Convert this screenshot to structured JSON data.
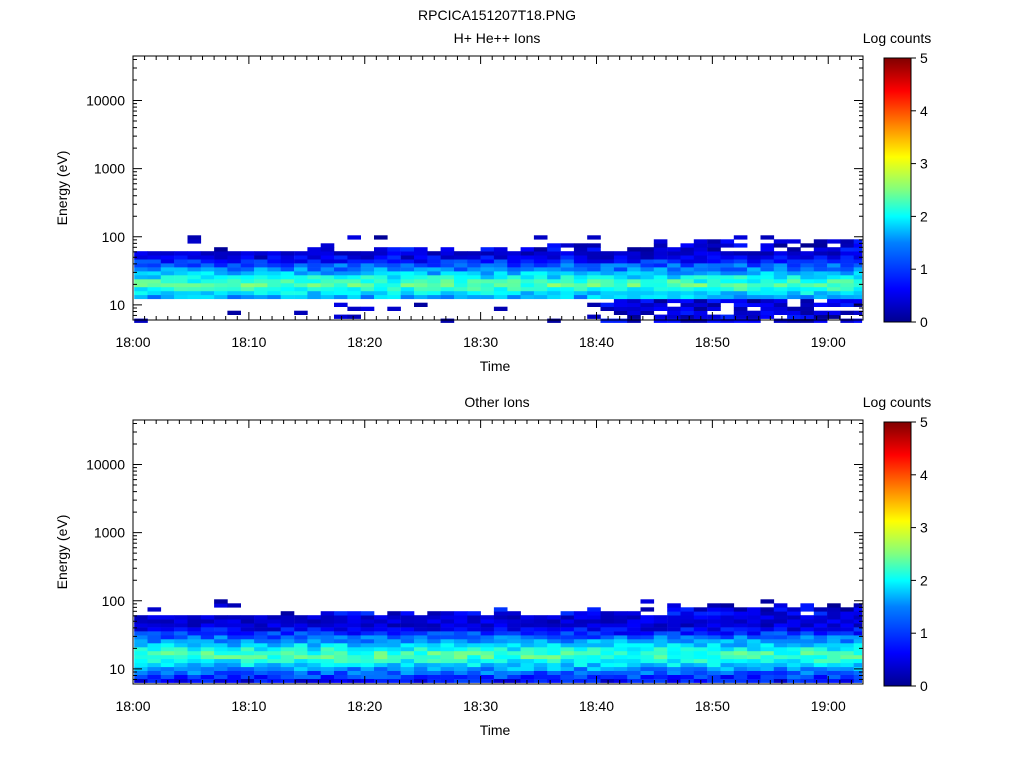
{
  "page_title": "RPCICA151207T18.PNG",
  "colors": {
    "colormap": [
      "#00008f",
      "#0000ff",
      "#0080ff",
      "#00ffff",
      "#80ff80",
      "#ffff00",
      "#ff8000",
      "#ff0000",
      "#800000"
    ]
  },
  "chart_data": [
    {
      "type": "heatmap",
      "title": "H+ He++ Ions",
      "xlabel": "Time",
      "ylabel": "Energy (eV)",
      "yscale": "log",
      "xlim": [
        "18:00",
        "19:03"
      ],
      "ylim": [
        6,
        45000
      ],
      "x_ticks": [
        "18:00",
        "18:10",
        "18:20",
        "18:30",
        "18:40",
        "18:50",
        "19:00"
      ],
      "y_ticks": [
        "10",
        "100",
        "1000",
        "10000"
      ],
      "colorbar": {
        "label": "Log counts",
        "range": [
          0,
          5
        ],
        "ticks": [
          "0",
          "1",
          "2",
          "3",
          "4",
          "5"
        ]
      },
      "energy_band_eV": [
        13,
        60
      ],
      "sparse_top_eV": 95,
      "low_energy_extension_eV": [
        6,
        12
      ],
      "low_energy_extension_start": "18:40"
    },
    {
      "type": "heatmap",
      "title": "Other Ions",
      "xlabel": "Time",
      "ylabel": "Energy (eV)",
      "yscale": "log",
      "xlim": [
        "18:00",
        "19:03"
      ],
      "ylim": [
        6,
        45000
      ],
      "x_ticks": [
        "18:00",
        "18:10",
        "18:20",
        "18:30",
        "18:40",
        "18:50",
        "19:00"
      ],
      "y_ticks": [
        "10",
        "100",
        "1000",
        "10000"
      ],
      "colorbar": {
        "label": "Log counts",
        "range": [
          0,
          5
        ],
        "ticks": [
          "0",
          "1",
          "2",
          "3",
          "4",
          "5"
        ]
      },
      "energy_band_eV": [
        6,
        60
      ],
      "sparse_top_eV": 95
    }
  ]
}
